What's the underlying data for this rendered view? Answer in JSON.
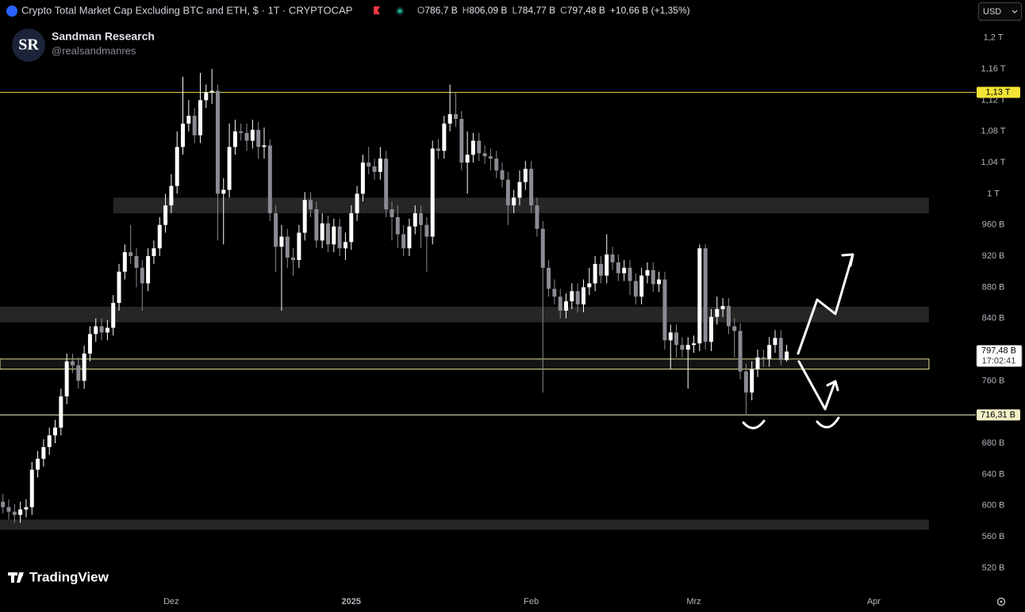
{
  "header": {
    "symbol_title": "Crypto Total Market Cap Excluding BTC and ETH, $ · 1T · CRYPTOCAP",
    "ohlc": [
      {
        "key": "O",
        "value": "786,7 B"
      },
      {
        "key": "H",
        "value": "806,09 B"
      },
      {
        "key": "L",
        "value": "784,77 B"
      },
      {
        "key": "C",
        "value": "797,48 B"
      }
    ],
    "change": "+10,66 B (+1,35%)",
    "currency": "USD"
  },
  "author": {
    "logo": "SR",
    "name": "Sandman Research",
    "handle": "@realsandmanres"
  },
  "brand": "TradingView",
  "chart_data": {
    "type": "candlestick",
    "x": [
      0,
      1,
      2,
      3,
      4,
      5,
      6,
      7,
      8,
      9,
      10,
      11,
      12,
      13,
      14,
      15,
      16,
      17,
      18,
      19,
      20,
      21,
      22,
      23,
      24,
      25,
      26,
      27,
      28,
      29,
      30,
      31,
      32,
      33,
      34,
      35,
      36,
      37,
      38,
      39,
      40,
      41,
      42,
      43,
      44,
      45,
      46,
      47,
      48,
      49,
      50,
      51,
      52,
      53,
      54,
      55,
      56,
      57,
      58,
      59,
      60,
      61,
      62,
      63,
      64,
      65,
      66,
      67,
      68,
      69,
      70,
      71,
      72,
      73,
      74,
      75,
      76,
      77,
      78,
      79,
      80,
      81,
      82,
      83,
      84,
      85,
      86,
      87,
      88,
      89,
      90,
      91,
      92,
      93,
      94,
      95,
      96,
      97,
      98,
      99,
      100,
      101,
      102,
      103,
      104,
      105,
      106,
      107,
      108,
      109,
      110,
      111,
      112,
      113,
      114,
      115,
      116,
      117,
      118,
      119,
      120,
      121,
      122,
      123,
      124,
      125,
      126,
      127,
      128,
      129,
      130,
      131,
      132,
      133,
      134,
      135
    ],
    "open": [
      605,
      598,
      592,
      588,
      595,
      598,
      646,
      660,
      675,
      690,
      700,
      740,
      785,
      780,
      760,
      795,
      820,
      830,
      822,
      828,
      860,
      900,
      925,
      920,
      905,
      885,
      920,
      930,
      960,
      985,
      1010,
      1060,
      1090,
      1100,
      1075,
      1120,
      1130,
      1132,
      1000,
      1005,
      1060,
      1080,
      1078,
      1068,
      1082,
      1060,
      1062,
      975,
      932,
      945,
      918,
      915,
      950,
      992,
      980,
      940,
      962,
      935,
      958,
      930,
      938,
      975,
      1000,
      1040,
      1035,
      1028,
      1045,
      980,
      970,
      948,
      930,
      958,
      975,
      960,
      945,
      1058,
      1055,
      1090,
      1102,
      1096,
      1040,
      1050,
      1068,
      1052,
      1048,
      1045,
      1030,
      1018,
      985,
      995,
      1015,
      1032,
      985,
      955,
      905,
      878,
      868,
      850,
      862,
      875,
      858,
      880,
      885,
      910,
      895,
      922,
      912,
      898,
      905,
      888,
      868,
      895,
      902,
      884,
      890,
      812,
      822,
      806,
      800,
      806,
      808,
      930,
      810,
      842,
      852,
      856,
      830,
      824,
      772,
      745,
      775,
      790,
      788,
      806,
      815,
      786.7
    ],
    "high": [
      615,
      608,
      602,
      605,
      608,
      656,
      670,
      685,
      700,
      710,
      750,
      795,
      795,
      790,
      805,
      830,
      840,
      840,
      838,
      870,
      910,
      935,
      960,
      930,
      915,
      930,
      940,
      970,
      1000,
      1025,
      1080,
      1150,
      1120,
      1110,
      1155,
      1140,
      1160,
      1140,
      1020,
      1090,
      1095,
      1090,
      1090,
      1095,
      1092,
      1085,
      1070,
      985,
      960,
      955,
      930,
      960,
      1002,
      1002,
      990,
      975,
      972,
      968,
      968,
      950,
      985,
      1010,
      1050,
      1060,
      1045,
      1060,
      1055,
      990,
      985,
      960,
      968,
      985,
      985,
      970,
      1068,
      1070,
      1100,
      1140,
      1130,
      1106,
      1080,
      1078,
      1078,
      1062,
      1058,
      1055,
      1040,
      1028,
      1005,
      1030,
      1042,
      1042,
      995,
      965,
      915,
      890,
      878,
      872,
      885,
      885,
      890,
      905,
      920,
      920,
      948,
      932,
      922,
      915,
      915,
      898,
      905,
      912,
      912,
      900,
      900,
      832,
      832,
      816,
      816,
      818,
      935,
      935,
      852,
      868,
      866,
      866,
      840,
      834,
      782,
      785,
      800,
      800,
      816,
      825,
      825,
      806.09
    ],
    "low": [
      590,
      582,
      578,
      578,
      585,
      588,
      636,
      650,
      665,
      680,
      690,
      730,
      770,
      750,
      750,
      785,
      810,
      812,
      812,
      818,
      850,
      890,
      910,
      880,
      850,
      875,
      910,
      920,
      950,
      975,
      1000,
      1050,
      1080,
      1065,
      1065,
      1110,
      1115,
      940,
      935,
      995,
      1050,
      1068,
      1055,
      1058,
      1045,
      1045,
      965,
      900,
      850,
      905,
      895,
      905,
      940,
      970,
      930,
      930,
      925,
      925,
      920,
      915,
      928,
      965,
      990,
      1025,
      1018,
      1018,
      970,
      940,
      930,
      920,
      920,
      948,
      930,
      900,
      935,
      1045,
      1045,
      1080,
      1086,
      1030,
      1000,
      1040,
      1042,
      1038,
      1030,
      1020,
      1008,
      960,
      975,
      985,
      1005,
      975,
      945,
      745,
      868,
      858,
      840,
      840,
      852,
      848,
      848,
      870,
      875,
      885,
      885,
      902,
      888,
      888,
      870,
      858,
      858,
      885,
      874,
      874,
      800,
      775,
      790,
      790,
      750,
      796,
      798,
      800,
      798,
      832,
      842,
      820,
      790,
      762,
      716,
      735,
      765,
      778,
      778,
      796,
      780,
      784.77
    ],
    "close": [
      598,
      592,
      588,
      595,
      598,
      646,
      660,
      675,
      690,
      700,
      740,
      785,
      780,
      760,
      795,
      820,
      830,
      822,
      828,
      860,
      900,
      925,
      920,
      905,
      885,
      920,
      930,
      960,
      985,
      1010,
      1060,
      1090,
      1100,
      1075,
      1120,
      1130,
      1132,
      1000,
      1005,
      1060,
      1080,
      1078,
      1068,
      1082,
      1060,
      1062,
      975,
      932,
      945,
      918,
      915,
      950,
      992,
      980,
      940,
      962,
      935,
      958,
      930,
      938,
      975,
      1000,
      1040,
      1035,
      1028,
      1045,
      980,
      970,
      948,
      930,
      958,
      975,
      960,
      945,
      1058,
      1055,
      1090,
      1102,
      1096,
      1040,
      1050,
      1068,
      1052,
      1048,
      1045,
      1030,
      1018,
      985,
      995,
      1015,
      1032,
      985,
      955,
      905,
      878,
      868,
      850,
      862,
      875,
      858,
      880,
      885,
      910,
      895,
      922,
      912,
      898,
      905,
      888,
      868,
      895,
      902,
      884,
      890,
      812,
      822,
      806,
      800,
      806,
      808,
      930,
      810,
      842,
      852,
      856,
      830,
      824,
      772,
      745,
      775,
      790,
      788,
      806,
      815,
      786.7,
      797.48
    ],
    "up_color": "#ffffff",
    "down_color": "#8b8b93",
    "xlim": [
      -0.5,
      167.3
    ],
    "xticks": [
      {
        "value": 29,
        "label": "Dez"
      },
      {
        "value": 60,
        "label": "2025"
      },
      {
        "value": 91,
        "label": "Feb"
      },
      {
        "value": 119,
        "label": "Mrz"
      },
      {
        "value": 150,
        "label": "Apr"
      }
    ],
    "ylim": [
      496,
      1218
    ],
    "yticks": [
      {
        "value": 1200,
        "label": "1,2 T"
      },
      {
        "value": 1160,
        "label": "1,16 T"
      },
      {
        "value": 1120,
        "label": "1,12 T"
      },
      {
        "value": 1080,
        "label": "1,08 T"
      },
      {
        "value": 1040,
        "label": "1,04 T"
      },
      {
        "value": 1000,
        "label": "1 T"
      },
      {
        "value": 960,
        "label": "960 B"
      },
      {
        "value": 920,
        "label": "920 B"
      },
      {
        "value": 880,
        "label": "880 B"
      },
      {
        "value": 840,
        "label": "840 B"
      },
      {
        "value": 760,
        "label": "760 B"
      },
      {
        "value": 680,
        "label": "680 B"
      },
      {
        "value": 640,
        "label": "640 B"
      },
      {
        "value": 600,
        "label": "600 B"
      },
      {
        "value": 560,
        "label": "560 B"
      },
      {
        "value": 520,
        "label": "520 B"
      }
    ],
    "levels": [
      {
        "value": 1130,
        "label": "1,13 T",
        "color": "#d8d24a",
        "label_bg": "#f2e335"
      },
      {
        "value": 716.31,
        "label": "716,31 B",
        "color": "#ece8bd",
        "label_bg": "#f3efc6"
      }
    ],
    "zones": [
      {
        "low": 975,
        "high": 995,
        "start": 19,
        "end": 159.5,
        "fill": "#262626"
      },
      {
        "low": 835,
        "high": 855,
        "start": -0.5,
        "end": 159.5,
        "fill": "#262626"
      },
      {
        "low": 775,
        "high": 788,
        "start": -0.5,
        "end": 159.5,
        "fill": "#141414",
        "outline": "#e2dc86"
      },
      {
        "low": 569,
        "high": 582,
        "start": -0.5,
        "end": 159.5,
        "fill": "#262626"
      }
    ],
    "last_price": {
      "label": "797,48 B",
      "countdown": "17:02:41"
    }
  }
}
